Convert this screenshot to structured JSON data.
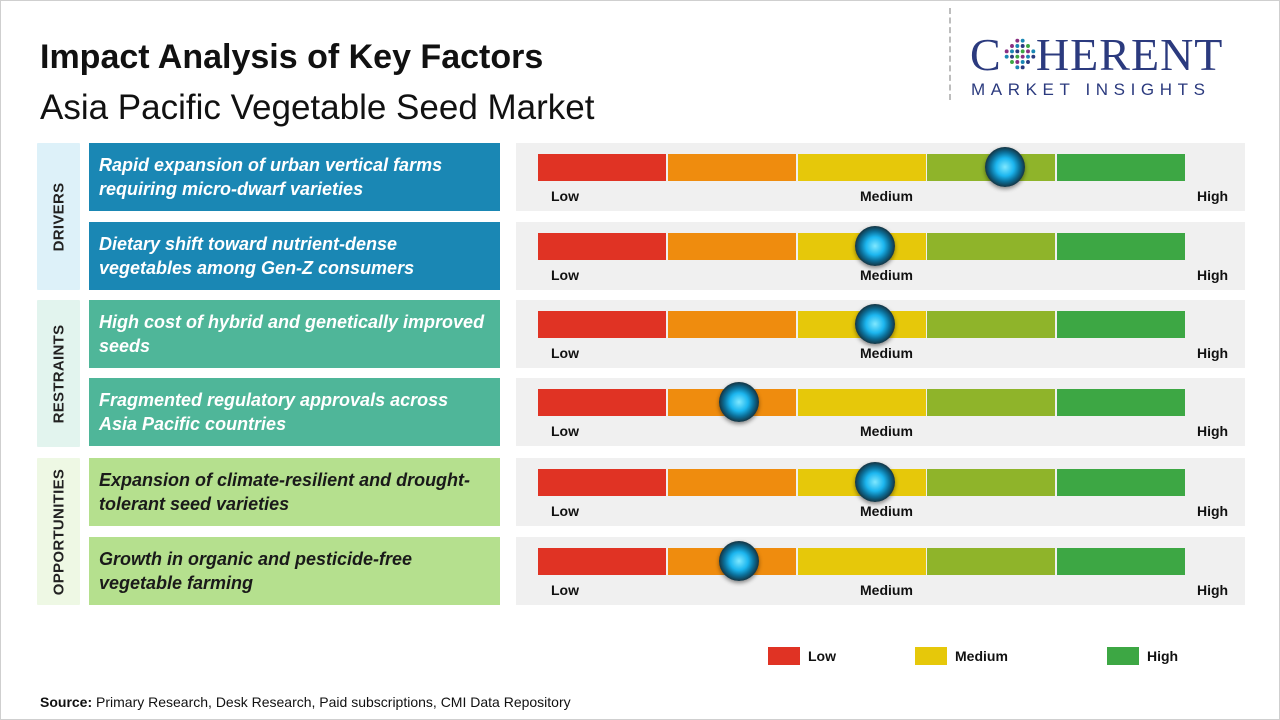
{
  "title": "Impact Analysis of Key Factors",
  "subtitle": "Asia Pacific Vegetable Seed Market",
  "logo": {
    "brand": "COHERENT",
    "tagline": "MARKET INSIGHTS",
    "color": "#2b3a7e"
  },
  "source": {
    "label": "Source:",
    "text": "Primary Research, Desk Research, Paid subscriptions, CMI Data Repository"
  },
  "colors": {
    "drivers": "#1a87b4",
    "restraints": "#4fb699",
    "opportunities": "#b5e08e",
    "scale": [
      "#e03324",
      "#ef8c0e",
      "#e6c80a",
      "#8fb42a",
      "#3da744"
    ]
  },
  "chart_data": {
    "type": "table",
    "scale": {
      "min": 0,
      "max": 1,
      "labels": [
        "Low",
        "Medium",
        "High"
      ]
    },
    "groups": [
      {
        "name": "DRIVERS",
        "factors": [
          {
            "text": "Rapid expansion of urban vertical farms requiring micro-dwarf varieties",
            "impact": 0.72
          },
          {
            "text": "Dietary shift toward nutrient-dense vegetables among Gen-Z consumers",
            "impact": 0.52
          }
        ]
      },
      {
        "name": "RESTRAINTS",
        "factors": [
          {
            "text": "High cost of hybrid and genetically improved seeds",
            "impact": 0.52
          },
          {
            "text": "Fragmented regulatory approvals across Asia Pacific countries",
            "impact": 0.31
          }
        ]
      },
      {
        "name": "OPPORTUNITIES",
        "factors": [
          {
            "text": "Expansion of climate-resilient and drought-tolerant seed varieties",
            "impact": 0.52
          },
          {
            "text": "Growth in organic and pesticide-free vegetable farming",
            "impact": 0.31
          }
        ]
      }
    ],
    "legend": [
      {
        "label": "Low",
        "color": "#e03324"
      },
      {
        "label": "Medium",
        "color": "#e6c80a"
      },
      {
        "label": "High",
        "color": "#3da744"
      }
    ]
  }
}
